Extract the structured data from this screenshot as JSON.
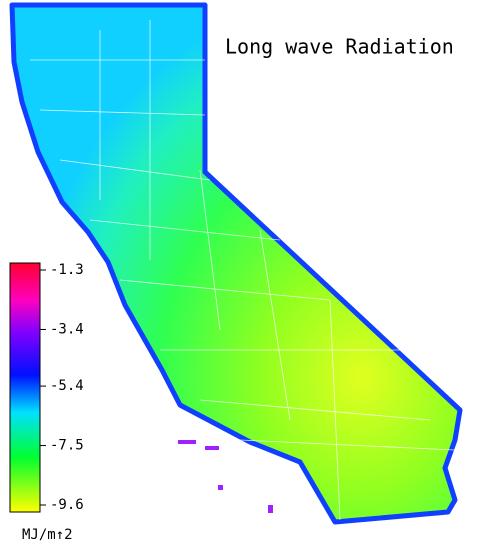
{
  "title": "Long wave Radiation",
  "colorbar": {
    "ticks": [
      -1.3,
      -3.4,
      -5.4,
      -7.5,
      -9.6
    ],
    "unit": "MJ/m↑2"
  }
}
